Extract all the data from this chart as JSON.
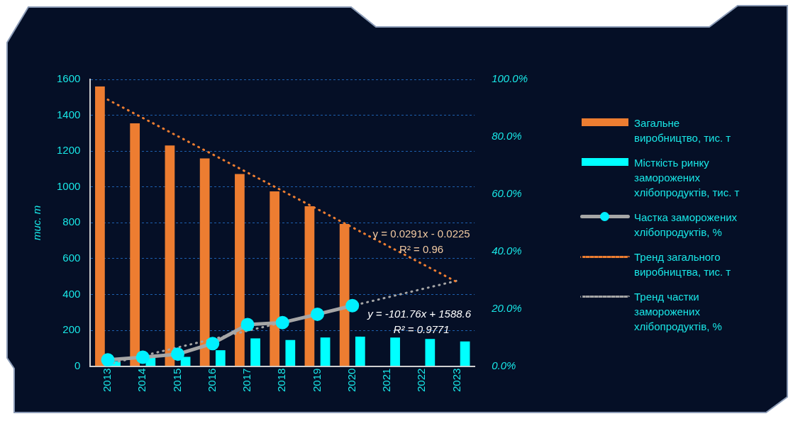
{
  "chart_data": {
    "type": "bar",
    "categories": [
      "2013",
      "2014",
      "2015",
      "2016",
      "2017",
      "2018",
      "2019",
      "2020",
      "2021",
      "2022",
      "2023"
    ],
    "ylabel": "тис. т",
    "ylim": [
      0,
      1600
    ],
    "yticks": [
      0,
      200,
      400,
      600,
      800,
      1000,
      1200,
      1400,
      1600
    ],
    "y2lim": [
      0,
      1
    ],
    "y2ticks": [
      {
        "value": 0,
        "label": "0.0%"
      },
      {
        "value": 0.2,
        "label": "20.0%"
      },
      {
        "value": 0.4,
        "label": "40.0%"
      },
      {
        "value": 0.6,
        "label": "60.0%"
      },
      {
        "value": 0.8,
        "label": "80.0%"
      },
      {
        "value": 1,
        "label": "100.0%"
      }
    ],
    "grid": "y",
    "legend": "right",
    "annotations": [
      "y = 0.0291x - 0.0225",
      "R² = 0.96",
      "y = -101.76x + 1588.6",
      "R² = 0.9771"
    ],
    "series": [
      {
        "name": "Загальне виробництво, тис. т",
        "color": "#ed7d31",
        "values": [
          1560,
          1355,
          1231,
          1159,
          1072,
          975,
          892,
          793,
          null,
          null,
          null
        ]
      },
      {
        "name": "Місткість ринку заморожених хлібопродуктів, тис. т",
        "color": "#00ffff",
        "values": [
          28,
          49,
          52,
          89,
          155,
          146,
          160,
          165,
          160,
          152,
          138
        ]
      },
      {
        "name": "Частка заморожених хлібопродуктів, %",
        "type": "line",
        "axis": "y2",
        "marker": "circle",
        "color": "#a6a6a6",
        "values": [
          0.022,
          0.031,
          0.042,
          0.079,
          0.145,
          0.152,
          0.181,
          0.211,
          null,
          null,
          null
        ]
      },
      {
        "name": "Тренд загального виробництва, тис. т",
        "type": "line",
        "line_style": "dotted",
        "marker": "none",
        "color": "#ed7d31",
        "values": [
          1487,
          null,
          null,
          null,
          null,
          null,
          null,
          null,
          null,
          null,
          469
        ]
      },
      {
        "name": "Тренд частки заморожених хлібопродуктів, %",
        "type": "line",
        "axis": "y2",
        "line_style": "dotted",
        "marker": "none",
        "color": "#a6a6a6",
        "values": [
          0.007,
          null,
          null,
          null,
          null,
          null,
          null,
          null,
          null,
          null,
          0.298
        ]
      }
    ]
  }
}
